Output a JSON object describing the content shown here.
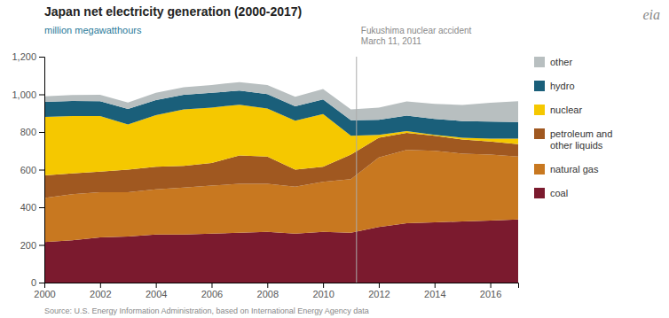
{
  "chart_data": {
    "type": "area",
    "stacked": true,
    "title": "Japan net electricity generation (2000-2017)",
    "subtitle": "million megawatthours",
    "x": [
      2000,
      2001,
      2002,
      2003,
      2004,
      2005,
      2006,
      2007,
      2008,
      2009,
      2010,
      2011,
      2012,
      2013,
      2014,
      2015,
      2016,
      2017
    ],
    "series": [
      {
        "name": "coal",
        "color": "#7b1a2e",
        "values": [
          215,
          225,
          240,
          245,
          255,
          255,
          260,
          265,
          270,
          260,
          270,
          265,
          295,
          315,
          320,
          325,
          330,
          335
        ]
      },
      {
        "name": "natural gas",
        "color": "#c87820",
        "values": [
          235,
          245,
          240,
          235,
          240,
          250,
          255,
          260,
          255,
          250,
          265,
          285,
          370,
          390,
          380,
          360,
          350,
          335
        ]
      },
      {
        "name": "petroleum and\nother liquids",
        "color": "#a05820",
        "values": [
          120,
          110,
          110,
          120,
          120,
          115,
          120,
          150,
          145,
          90,
          80,
          130,
          105,
          90,
          80,
          75,
          70,
          65
        ]
      },
      {
        "name": "nuclear",
        "color": "#f5c800",
        "values": [
          310,
          305,
          295,
          240,
          275,
          300,
          295,
          270,
          255,
          260,
          280,
          100,
          15,
          10,
          5,
          10,
          15,
          30
        ]
      },
      {
        "name": "hydro",
        "color": "#1a5f7a",
        "values": [
          80,
          80,
          78,
          82,
          80,
          78,
          78,
          75,
          76,
          77,
          78,
          82,
          80,
          82,
          85,
          88,
          90,
          88
        ]
      },
      {
        "name": "other",
        "color": "#b8bfc0",
        "values": [
          30,
          32,
          35,
          35,
          38,
          40,
          42,
          45,
          48,
          50,
          55,
          58,
          65,
          75,
          80,
          85,
          100,
          110
        ]
      }
    ],
    "xlim": [
      2000,
      2017
    ],
    "xticks": [
      2000,
      2002,
      2004,
      2006,
      2008,
      2010,
      2012,
      2014,
      2016
    ],
    "ylim": [
      0,
      1200
    ],
    "yticks": [
      0,
      200,
      400,
      600,
      800,
      {
        "value": 1000,
        "label": "1,000"
      },
      {
        "value": 1200,
        "label": "1,200"
      }
    ],
    "grid": false,
    "legend": "right",
    "annotations": [
      {
        "x": 2011.2,
        "text": "Fukushima nuclear accident\nMarch 11, 2011"
      },
      {
        "text": "eia"
      }
    ],
    "source": "Source: U.S. Energy Information Administration, based on International Energy Agency data"
  }
}
